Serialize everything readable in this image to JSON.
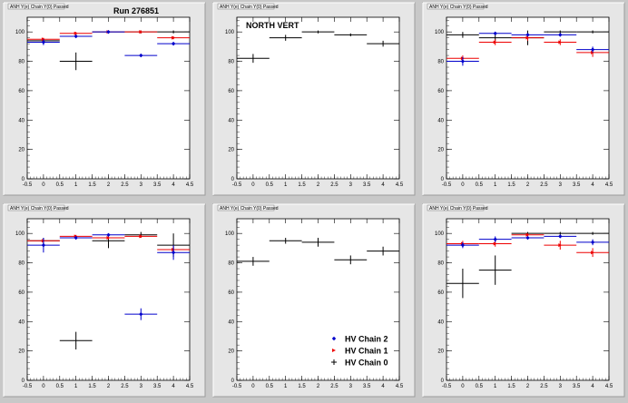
{
  "run_label": "Run 276851",
  "colors": {
    "chain2": "#0000cc",
    "chain1": "#ee0000",
    "chain0": "#000000",
    "frame": "#e6e6e6",
    "plot_bg": "#ffffff",
    "background": "#c8c8c8"
  },
  "chart_data": [
    {
      "type": "scatter",
      "tab_label": "ANH Y(e) Chain Y(0) Passed",
      "title": "",
      "xlim": [
        -0.5,
        4.5
      ],
      "ylim": [
        0,
        110
      ],
      "xticks": [
        "-0.5",
        "0",
        "0.5",
        "1",
        "1.5",
        "2",
        "2.5",
        "3",
        "3.5",
        "4",
        "4.5"
      ],
      "yticks": [
        "0",
        "20",
        "40",
        "60",
        "80",
        "100"
      ],
      "series": [
        {
          "name": "HV Chain 2",
          "color": "#0000cc",
          "points": [
            [
              0,
              93
            ],
            [
              1,
              97
            ],
            [
              2,
              100
            ],
            [
              3,
              84
            ],
            [
              4,
              92
            ]
          ],
          "yerr": [
            2,
            1,
            1,
            1,
            1
          ]
        },
        {
          "name": "HV Chain 1",
          "color": "#ee0000",
          "points": [
            [
              0,
              95
            ],
            [
              1,
              99
            ],
            [
              2,
              100
            ],
            [
              3,
              100
            ],
            [
              4,
              96
            ]
          ],
          "yerr": [
            1,
            1,
            1,
            1,
            1
          ]
        },
        {
          "name": "HV Chain 0",
          "color": "#000000",
          "points": [
            [
              0,
              94
            ],
            [
              1,
              80
            ],
            [
              2,
              100
            ],
            [
              3,
              100
            ],
            [
              4,
              100
            ]
          ],
          "yerr": [
            1,
            6,
            1,
            1,
            1
          ]
        }
      ]
    },
    {
      "type": "scatter",
      "tab_label": "ANH Y(e) Chain Y(0) Passed",
      "title": "NORTH VERT",
      "xlim": [
        -0.5,
        4.5
      ],
      "ylim": [
        0,
        110
      ],
      "xticks": [
        "-0.5",
        "0",
        "0.5",
        "1",
        "1.5",
        "2",
        "2.5",
        "3",
        "3.5",
        "4",
        "4.5"
      ],
      "yticks": [
        "0",
        "20",
        "40",
        "60",
        "80",
        "100"
      ],
      "series": [
        {
          "name": "HV Chain 0",
          "color": "#000000",
          "points": [
            [
              0,
              82
            ],
            [
              1,
              96
            ],
            [
              2,
              100
            ],
            [
              3,
              98
            ],
            [
              4,
              92
            ]
          ],
          "yerr": [
            3,
            2,
            1,
            1,
            2
          ]
        }
      ]
    },
    {
      "type": "scatter",
      "tab_label": "ANH Y(e) Chain Y(0) Passed",
      "title": "",
      "xlim": [
        -0.5,
        4.5
      ],
      "ylim": [
        0,
        110
      ],
      "xticks": [
        "-0.5",
        "0",
        "0.5",
        "1",
        "1.5",
        "2",
        "2.5",
        "3",
        "3.5",
        "4",
        "4.5"
      ],
      "yticks": [
        "0",
        "20",
        "40",
        "60",
        "80",
        "100"
      ],
      "series": [
        {
          "name": "HV Chain 2",
          "color": "#0000cc",
          "points": [
            [
              0,
              80
            ],
            [
              1,
              99
            ],
            [
              2,
              98
            ],
            [
              3,
              98
            ],
            [
              4,
              88
            ]
          ],
          "yerr": [
            3,
            1,
            1,
            1,
            2
          ]
        },
        {
          "name": "HV Chain 1",
          "color": "#ee0000",
          "points": [
            [
              0,
              82
            ],
            [
              1,
              93
            ],
            [
              2,
              96
            ],
            [
              3,
              93
            ],
            [
              4,
              86
            ]
          ],
          "yerr": [
            2,
            2,
            2,
            2,
            3
          ]
        },
        {
          "name": "HV Chain 0",
          "color": "#000000",
          "points": [
            [
              0,
              98
            ],
            [
              1,
              96
            ],
            [
              2,
              96
            ],
            [
              3,
              100
            ],
            [
              4,
              100
            ]
          ],
          "yerr": [
            2,
            2,
            5,
            1,
            1
          ]
        }
      ]
    },
    {
      "type": "scatter",
      "tab_label": "ANH Y(e) Chain Y(0) Passed",
      "title": "",
      "xlim": [
        -0.5,
        4.5
      ],
      "ylim": [
        0,
        110
      ],
      "xticks": [
        "-0.5",
        "0",
        "0.5",
        "1",
        "1.5",
        "2",
        "2.5",
        "3",
        "3.5",
        "4",
        "4.5"
      ],
      "yticks": [
        "0",
        "20",
        "40",
        "60",
        "80",
        "100"
      ],
      "series": [
        {
          "name": "HV Chain 2",
          "color": "#0000cc",
          "points": [
            [
              0,
              92
            ],
            [
              1,
              97
            ],
            [
              2,
              99
            ],
            [
              3,
              45
            ],
            [
              4,
              87
            ]
          ],
          "yerr": [
            5,
            1,
            1,
            4,
            5
          ]
        },
        {
          "name": "HV Chain 1",
          "color": "#ee0000",
          "points": [
            [
              0,
              95
            ],
            [
              1,
              98
            ],
            [
              2,
              97
            ],
            [
              3,
              98
            ],
            [
              4,
              89
            ]
          ],
          "yerr": [
            1,
            1,
            1,
            1,
            2
          ]
        },
        {
          "name": "HV Chain 0",
          "color": "#000000",
          "points": [
            [
              0,
              95
            ],
            [
              1,
              27
            ],
            [
              2,
              95
            ],
            [
              3,
              99
            ],
            [
              4,
              92
            ]
          ],
          "yerr": [
            2,
            6,
            5,
            2,
            8
          ]
        }
      ]
    },
    {
      "type": "scatter",
      "tab_label": "ANH Y(e) Chain Y(0) Passed",
      "title": "",
      "xlim": [
        -0.5,
        4.5
      ],
      "ylim": [
        0,
        110
      ],
      "xticks": [
        "-0.5",
        "0",
        "0.5",
        "1",
        "1.5",
        "2",
        "2.5",
        "3",
        "3.5",
        "4",
        "4.5"
      ],
      "yticks": [
        "0",
        "20",
        "40",
        "60",
        "80",
        "100"
      ],
      "series": [
        {
          "name": "HV Chain 0",
          "color": "#000000",
          "points": [
            [
              0,
              81
            ],
            [
              1,
              95
            ],
            [
              2,
              94
            ],
            [
              3,
              82
            ],
            [
              4,
              88
            ]
          ],
          "yerr": [
            3,
            2,
            3,
            3,
            3
          ]
        }
      ],
      "legend": {
        "position": "bottom-right",
        "entries": [
          "HV Chain 2",
          "HV Chain 1",
          "HV Chain 0"
        ]
      }
    },
    {
      "type": "scatter",
      "tab_label": "ANH Y(e) Chain Y(0) Passed",
      "title": "",
      "xlim": [
        -0.5,
        4.5
      ],
      "ylim": [
        0,
        110
      ],
      "xticks": [
        "-0.5",
        "0",
        "0.5",
        "1",
        "1.5",
        "2",
        "2.5",
        "3",
        "3.5",
        "4",
        "4.5"
      ],
      "yticks": [
        "0",
        "20",
        "40",
        "60",
        "80",
        "100"
      ],
      "series": [
        {
          "name": "HV Chain 2",
          "color": "#0000cc",
          "points": [
            [
              0,
              92
            ],
            [
              1,
              96
            ],
            [
              2,
              97
            ],
            [
              3,
              98
            ],
            [
              4,
              94
            ]
          ],
          "yerr": [
            2,
            2,
            1,
            1,
            2
          ]
        },
        {
          "name": "HV Chain 1",
          "color": "#ee0000",
          "points": [
            [
              0,
              93
            ],
            [
              1,
              93
            ],
            [
              2,
              99
            ],
            [
              3,
              92
            ],
            [
              4,
              87
            ]
          ],
          "yerr": [
            2,
            2,
            1,
            3,
            3
          ]
        },
        {
          "name": "HV Chain 0",
          "color": "#000000",
          "points": [
            [
              0,
              66
            ],
            [
              1,
              75
            ],
            [
              2,
              100
            ],
            [
              3,
              100
            ],
            [
              4,
              100
            ]
          ],
          "yerr": [
            10,
            10,
            1,
            1,
            1
          ]
        }
      ]
    }
  ],
  "legend_labels": [
    "HV Chain 2",
    "HV Chain 1",
    "HV Chain 0"
  ]
}
